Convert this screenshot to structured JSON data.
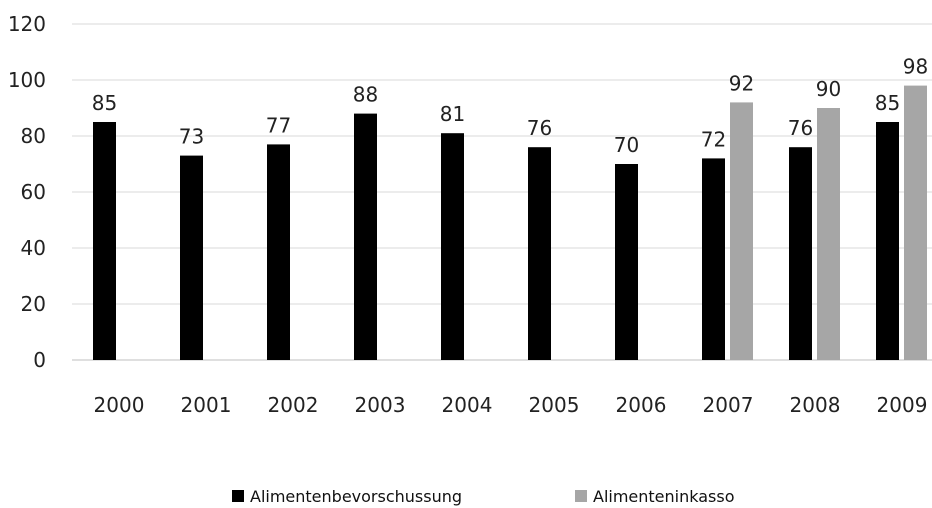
{
  "chart_data": {
    "type": "bar",
    "categories": [
      "2000",
      "2001",
      "2002",
      "2003",
      "2004",
      "2005",
      "2006",
      "2007",
      "2008",
      "2009"
    ],
    "series": [
      {
        "name": "Alimentenbevorschussung",
        "color": "#000000",
        "values": [
          85,
          73,
          77,
          88,
          81,
          76,
          70,
          72,
          76,
          85
        ]
      },
      {
        "name": "Alimenteninkasso",
        "color": "#a6a6a6",
        "values": [
          null,
          null,
          null,
          null,
          null,
          null,
          null,
          92,
          90,
          98
        ]
      }
    ],
    "title": "",
    "xlabel": "",
    "ylabel": "",
    "ylim": [
      0,
      120
    ],
    "yticks": [
      0,
      20,
      40,
      60,
      80,
      100,
      120
    ],
    "grid": "horizontal",
    "legend": "bottom"
  }
}
